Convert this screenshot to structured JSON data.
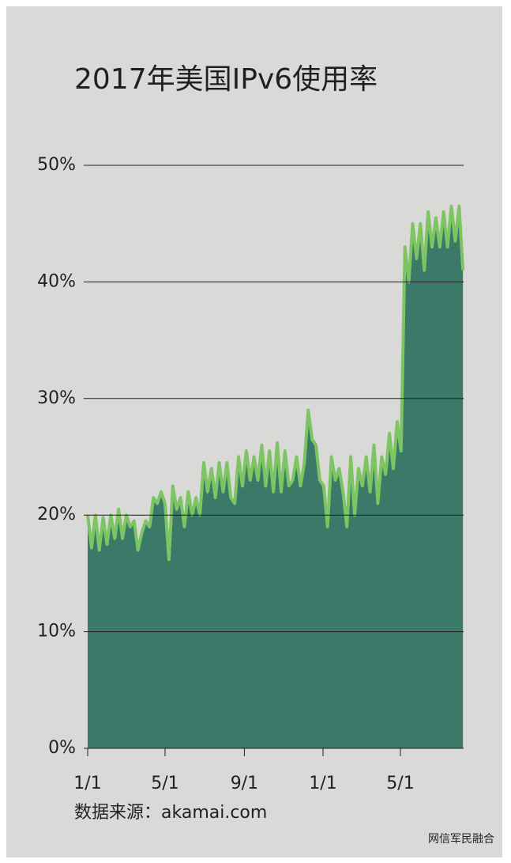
{
  "chart_data": {
    "type": "area",
    "title": "2017年美国IPv6使用率",
    "source": "数据来源：akamai.com",
    "watermark": "网信军民融合",
    "x": [
      0,
      6,
      12,
      18,
      24,
      30,
      36,
      42,
      48,
      54,
      60,
      66,
      72,
      78,
      84,
      90,
      96,
      102,
      108,
      114,
      120,
      126,
      132,
      138,
      144,
      150,
      156,
      162,
      168,
      174,
      180,
      186,
      192,
      198,
      204,
      210,
      216,
      222,
      228,
      234,
      240,
      246,
      252,
      258,
      264,
      270,
      276,
      282,
      288,
      294,
      300,
      306,
      312,
      318,
      324,
      330,
      336,
      342,
      348,
      354,
      360,
      366,
      372,
      378,
      384,
      390,
      396,
      402,
      408,
      414,
      420,
      426,
      432,
      438,
      444,
      450,
      456,
      462,
      468,
      474,
      480,
      486,
      492,
      498,
      504,
      510,
      516,
      522,
      528,
      534,
      540,
      546,
      552,
      558,
      564,
      570,
      576,
      582
    ],
    "series": [
      {
        "color": "#7dc462",
        "fill": "#3b7a68",
        "values": [
          20,
          17.2,
          20,
          17,
          19.8,
          17.5,
          20,
          18,
          20.5,
          18,
          20,
          19,
          19.5,
          17,
          18.5,
          19.5,
          19,
          21.5,
          21,
          22,
          21,
          16.2,
          22.5,
          20.5,
          21.5,
          19,
          22,
          20,
          21.5,
          20,
          24.5,
          22,
          24,
          21.5,
          24.5,
          22,
          24.5,
          21.5,
          21,
          25,
          22.5,
          25.5,
          23,
          25,
          23,
          26,
          22.5,
          25.5,
          22,
          26.2,
          22,
          25.5,
          22.5,
          23,
          25,
          22.5,
          24.5,
          29,
          26.5,
          26,
          23,
          22.5,
          19,
          25,
          23,
          24,
          22,
          19,
          25,
          20,
          24,
          22.5,
          25,
          22,
          26,
          21,
          25,
          23.5,
          27,
          24,
          28,
          25.5,
          43,
          40,
          45,
          42,
          45,
          41,
          46,
          43,
          45.5,
          43,
          46,
          43,
          46.5,
          43.5,
          46.5,
          41
        ]
      }
    ],
    "xlim": [
      0,
      583
    ],
    "xticks": [
      {
        "value": 0,
        "label": "1/1"
      },
      {
        "value": 120,
        "label": "5/1"
      },
      {
        "value": 243,
        "label": "9/1"
      },
      {
        "value": 365,
        "label": "1/1"
      },
      {
        "value": 485,
        "label": "5/1"
      }
    ],
    "ylim": [
      0,
      50
    ],
    "yticks": [
      {
        "value": 0,
        "label": "0%"
      },
      {
        "value": 10,
        "label": "10%"
      },
      {
        "value": 20,
        "label": "20%"
      },
      {
        "value": 30,
        "label": "30%"
      },
      {
        "value": 40,
        "label": "40%"
      },
      {
        "value": 50,
        "label": "50%"
      }
    ],
    "grid": true
  }
}
